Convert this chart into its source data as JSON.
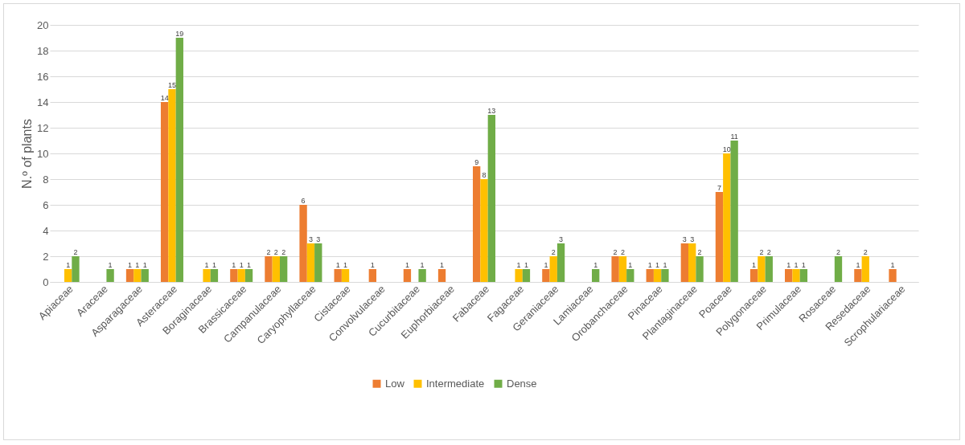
{
  "chart_data": {
    "type": "bar",
    "ylabel": "N.º of plants",
    "categories": [
      "Apiaceae",
      "Araceae",
      "Asparagaceae",
      "Asteraceae",
      "Boraginaceae",
      "Brassicaceae",
      "Campanulaceae",
      "Caryophyllaceae",
      "Cistaceae",
      "Convolvulaceae",
      "Cucurbitaceae",
      "Euphorbiaceae",
      "Fabaceae",
      "Fagaceae",
      "Geraniaceae",
      "Lamiaceae",
      "Orobanchaceae",
      "Pinaceae",
      "Plantaginaceae",
      "Poaceae",
      "Polygonaceae",
      "Primulaceae",
      "Rosaceae",
      "Resedaceae",
      "Scrophulariaceae"
    ],
    "series": [
      {
        "name": "Low",
        "color": "#ed7d31",
        "values": [
          null,
          null,
          1,
          14,
          null,
          1,
          2,
          6,
          1,
          1,
          1,
          1,
          9,
          null,
          1,
          null,
          2,
          1,
          3,
          7,
          1,
          1,
          null,
          1,
          1
        ]
      },
      {
        "name": "Intermediate",
        "color": "#ffc000",
        "values": [
          1,
          null,
          1,
          15,
          1,
          1,
          2,
          3,
          1,
          null,
          null,
          null,
          8,
          1,
          2,
          null,
          2,
          1,
          3,
          10,
          2,
          1,
          null,
          2,
          null
        ]
      },
      {
        "name": "Dense",
        "color": "#70ad47",
        "values": [
          2,
          1,
          1,
          19,
          1,
          1,
          2,
          3,
          null,
          null,
          1,
          null,
          13,
          1,
          3,
          1,
          1,
          1,
          2,
          11,
          2,
          1,
          2,
          null,
          null
        ]
      }
    ],
    "ylim": [
      0,
      20
    ],
    "yticks": [
      0,
      2,
      4,
      6,
      8,
      10,
      12,
      14,
      16,
      18,
      20
    ],
    "grid": "y",
    "legend": "bottom",
    "data_labels": true
  }
}
